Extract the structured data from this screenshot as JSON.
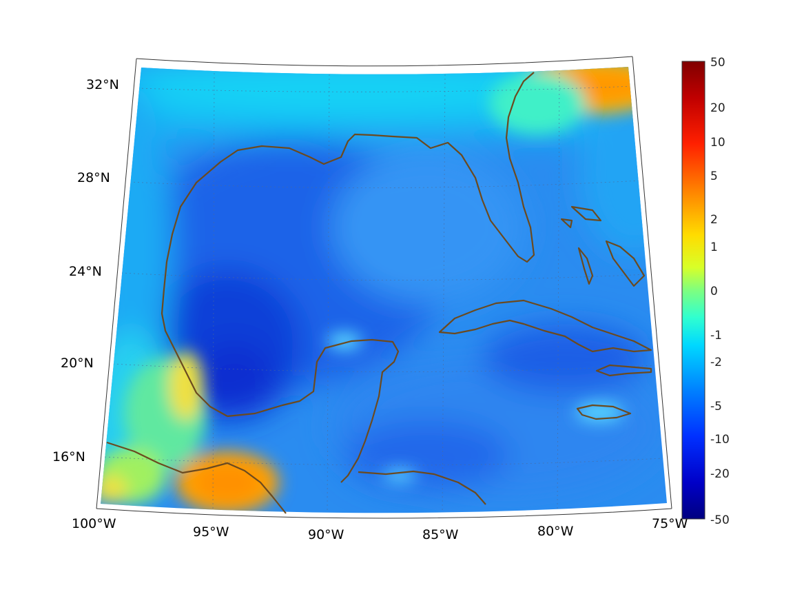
{
  "map": {
    "type": "geographic-heatmap",
    "region": "Gulf of Mexico and Caribbean",
    "projection": "conic",
    "lon_range": [
      -100,
      -75
    ],
    "lat_range": [
      14,
      33
    ],
    "lon_ticks": [
      {
        "value": -100,
        "label": "100°W"
      },
      {
        "value": -95,
        "label": "95°W"
      },
      {
        "value": -90,
        "label": "90°W"
      },
      {
        "value": -85,
        "label": "85°W"
      },
      {
        "value": -80,
        "label": "80°W"
      },
      {
        "value": -75,
        "label": "75°W"
      }
    ],
    "lat_ticks": [
      {
        "value": 32,
        "label": "32°N"
      },
      {
        "value": 28,
        "label": "28°N"
      },
      {
        "value": 24,
        "label": "24°N"
      },
      {
        "value": 20,
        "label": "20°N"
      },
      {
        "value": 16,
        "label": "16°N"
      }
    ],
    "grid": true,
    "coastline_color": "#6b4a1f",
    "colormap": "jet",
    "colorbar": {
      "placement": "right",
      "labels": [
        "50",
        "20",
        "10",
        "5",
        "2",
        "1",
        "0",
        "-1",
        "-2",
        "-5",
        "-10",
        "-20",
        "-50"
      ]
    }
  }
}
